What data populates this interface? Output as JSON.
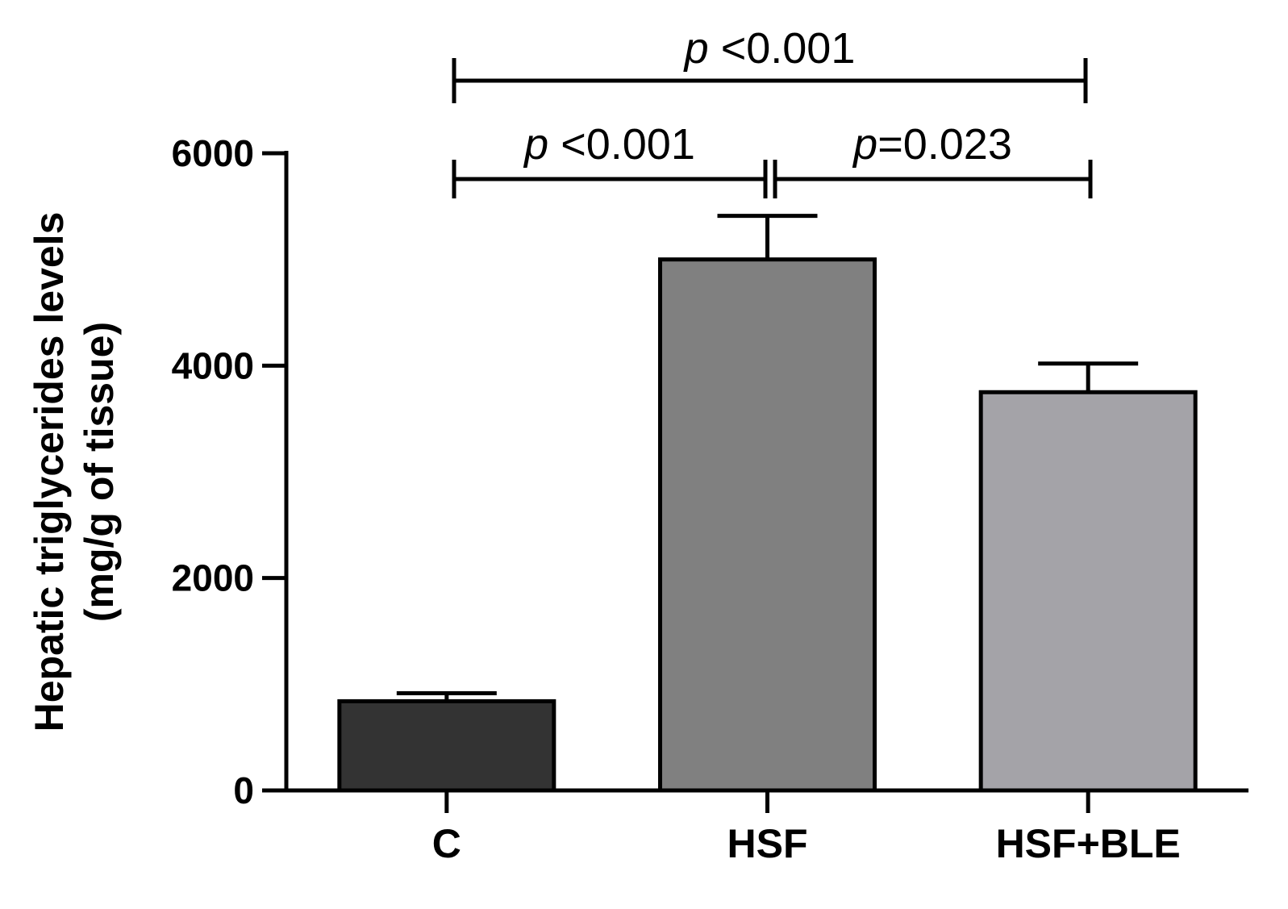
{
  "chart_data": {
    "type": "bar",
    "categories": [
      "C",
      "HSF",
      "HSF+BLE"
    ],
    "values": [
      840,
      5000,
      3750
    ],
    "errors": [
      75,
      410,
      270
    ],
    "bar_colors": [
      "#333333",
      "#808080",
      "#a4a3a8"
    ],
    "ylabel": [
      "Hepatic triglycerides levels",
      "(mg/g of tissue)"
    ],
    "ylim": [
      0,
      6000
    ],
    "yticks": [
      0,
      2000,
      4000,
      6000
    ],
    "ytick_labels": [
      "0",
      "2000",
      "4000",
      "6000"
    ],
    "grid": false,
    "significance": [
      {
        "from": 0,
        "to": 2,
        "p_symbol": "p",
        "rest": " <0.001"
      },
      {
        "from": 0,
        "to": 1,
        "p_symbol": "p",
        "rest": " <0.001"
      },
      {
        "from": 1,
        "to": 2,
        "p_symbol": "p",
        "rest": "=0.023"
      }
    ]
  }
}
